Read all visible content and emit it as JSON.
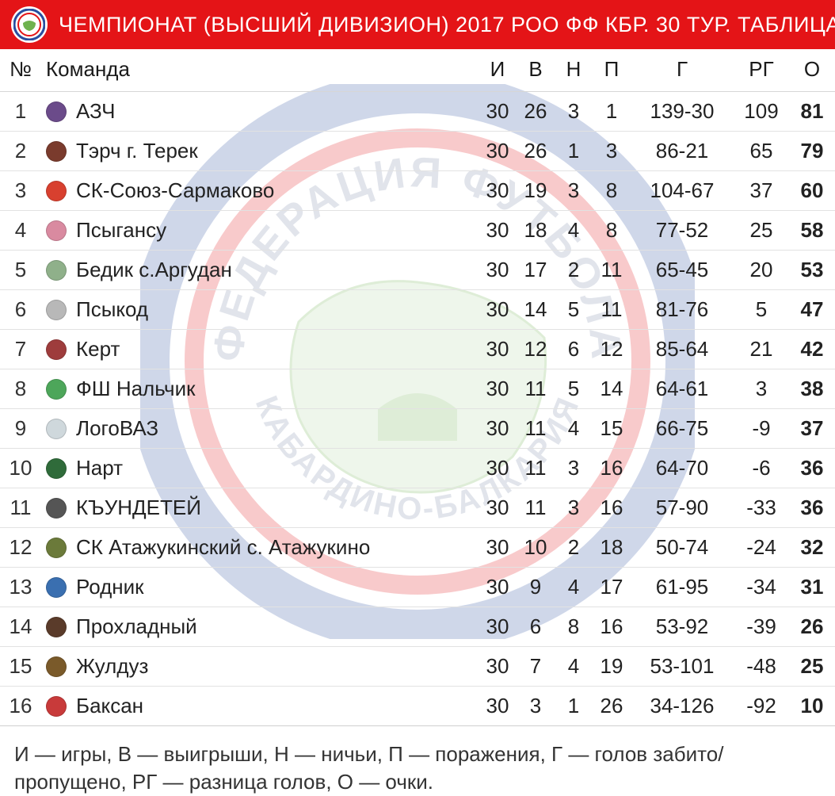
{
  "header": {
    "title": "ЧЕМПИОНАТ (ВЫСШИЙ ДИВИЗИОН) 2017 РОО ФФ КБР. 30 ТУР. ТАБЛИЦА.",
    "bg_color": "#e41417",
    "text_color": "#ffffff"
  },
  "table": {
    "columns": {
      "rank": "№",
      "team": "Команда",
      "played": "И",
      "wins": "В",
      "draws": "Н",
      "losses": "П",
      "goals": "Г",
      "gd": "РГ",
      "points": "О"
    },
    "rows": [
      {
        "rank": "1",
        "icon_color": "#6b4b8a",
        "team": "АЗЧ",
        "played": "30",
        "wins": "26",
        "draws": "3",
        "losses": "1",
        "goals": "139-30",
        "gd": "109",
        "points": "81"
      },
      {
        "rank": "2",
        "icon_color": "#7a3b2d",
        "team": "Тэрч г. Терек",
        "played": "30",
        "wins": "26",
        "draws": "1",
        "losses": "3",
        "goals": "86-21",
        "gd": "65",
        "points": "79"
      },
      {
        "rank": "3",
        "icon_color": "#d8402f",
        "team": "СК-Союз-Сармаково",
        "played": "30",
        "wins": "19",
        "draws": "3",
        "losses": "8",
        "goals": "104-67",
        "gd": "37",
        "points": "60"
      },
      {
        "rank": "4",
        "icon_color": "#d98aa0",
        "team": "Псыгансу",
        "played": "30",
        "wins": "18",
        "draws": "4",
        "losses": "8",
        "goals": "77-52",
        "gd": "25",
        "points": "58"
      },
      {
        "rank": "5",
        "icon_color": "#8fb08a",
        "team": "Бедик с.Аргудан",
        "played": "30",
        "wins": "17",
        "draws": "2",
        "losses": "11",
        "goals": "65-45",
        "gd": "20",
        "points": "53"
      },
      {
        "rank": "6",
        "icon_color": "#b8b8b8",
        "team": "Псыкод",
        "played": "30",
        "wins": "14",
        "draws": "5",
        "losses": "11",
        "goals": "81-76",
        "gd": "5",
        "points": "47"
      },
      {
        "rank": "7",
        "icon_color": "#9e3c3c",
        "team": "Керт",
        "played": "30",
        "wins": "12",
        "draws": "6",
        "losses": "12",
        "goals": "85-64",
        "gd": "21",
        "points": "42"
      },
      {
        "rank": "8",
        "icon_color": "#4da65a",
        "team": "ФШ Нальчик",
        "played": "30",
        "wins": "11",
        "draws": "5",
        "losses": "14",
        "goals": "64-61",
        "gd": "3",
        "points": "38"
      },
      {
        "rank": "9",
        "icon_color": "#cfd8dc",
        "team": "ЛогоВАЗ",
        "played": "30",
        "wins": "11",
        "draws": "4",
        "losses": "15",
        "goals": "66-75",
        "gd": "-9",
        "points": "37"
      },
      {
        "rank": "10",
        "icon_color": "#2f6b3a",
        "team": "Нарт",
        "played": "30",
        "wins": "11",
        "draws": "3",
        "losses": "16",
        "goals": "64-70",
        "gd": "-6",
        "points": "36"
      },
      {
        "rank": "11",
        "icon_color": "#555555",
        "team": "КЪУНДЕТЕЙ",
        "played": "30",
        "wins": "11",
        "draws": "3",
        "losses": "16",
        "goals": "57-90",
        "gd": "-33",
        "points": "36"
      },
      {
        "rank": "12",
        "icon_color": "#6b7a3a",
        "team": "СК Атажукинский с. Атажукино",
        "played": "30",
        "wins": "10",
        "draws": "2",
        "losses": "18",
        "goals": "50-74",
        "gd": "-24",
        "points": "32"
      },
      {
        "rank": "13",
        "icon_color": "#3a6fb0",
        "team": "Родник",
        "played": "30",
        "wins": "9",
        "draws": "4",
        "losses": "17",
        "goals": "61-95",
        "gd": "-34",
        "points": "31"
      },
      {
        "rank": "14",
        "icon_color": "#5a3b2a",
        "team": "Прохладный",
        "played": "30",
        "wins": "6",
        "draws": "8",
        "losses": "16",
        "goals": "53-92",
        "gd": "-39",
        "points": "26"
      },
      {
        "rank": "15",
        "icon_color": "#7a5a2a",
        "team": "Жулдуз",
        "played": "30",
        "wins": "7",
        "draws": "4",
        "losses": "19",
        "goals": "53-101",
        "gd": "-48",
        "points": "25"
      },
      {
        "rank": "16",
        "icon_color": "#c83a3a",
        "team": "Баксан",
        "played": "30",
        "wins": "3",
        "draws": "1",
        "losses": "26",
        "goals": "34-126",
        "gd": "-92",
        "points": "10"
      }
    ],
    "row_border_color": "#e2e2e2",
    "header_border_color": "#d6d6d6",
    "text_color": "#222222",
    "font_size_pt": 20
  },
  "legend": {
    "text": "И — игры, В — выигрыши, Н — ничьи, П — поражения, Г — голов забито/пропущено, РГ — разница голов, О — очки."
  },
  "watermark": {
    "outer_ring": "#2a4ea0",
    "inner_ring": "#e41417",
    "center_fill": "#ffffff",
    "map_fill": "#6fb24f",
    "text_color": "#7a8aa8",
    "opacity": 0.22
  }
}
